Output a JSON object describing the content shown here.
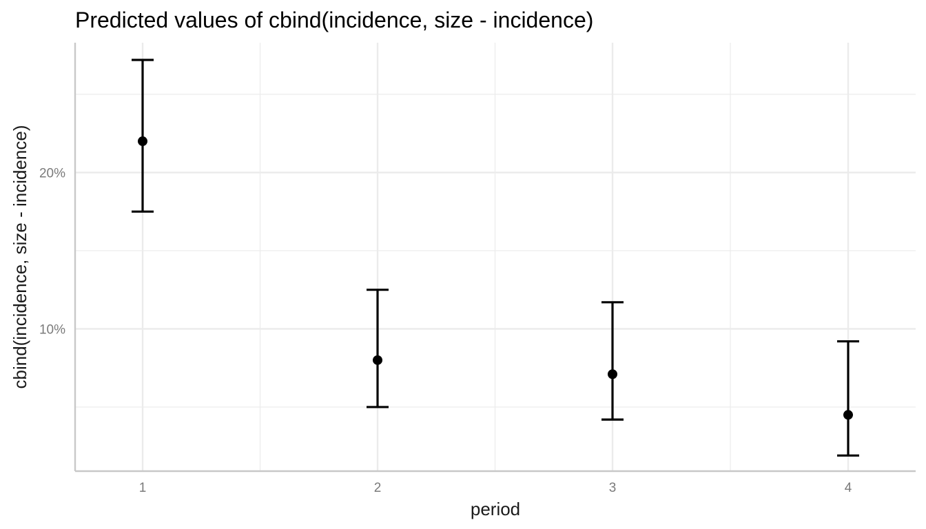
{
  "chart_data": {
    "type": "scatter",
    "title": "Predicted values of cbind(incidence, size - incidence)",
    "xlabel": "period",
    "ylabel": "cbind(incidence, size - incidence)",
    "x_type": "categorical",
    "categories": [
      "1",
      "2",
      "3",
      "4"
    ],
    "y_unit": "%",
    "y_ticks": [
      10,
      20
    ],
    "y_tick_labels": [
      "10%",
      "20%"
    ],
    "ylim": [
      0.9,
      28.3
    ],
    "grid": true,
    "legend": "none",
    "series": [
      {
        "values": [
          22.0,
          8.0,
          7.1,
          4.5
        ],
        "ci_low": [
          17.5,
          5.0,
          4.2,
          1.9
        ],
        "ci_high": [
          27.2,
          12.5,
          11.7,
          9.2
        ]
      }
    ],
    "colors": {
      "points": "#000000",
      "grid": "#ebebeb",
      "axis": "#c8c8c8",
      "tick_text": "#7a7a7a"
    }
  }
}
